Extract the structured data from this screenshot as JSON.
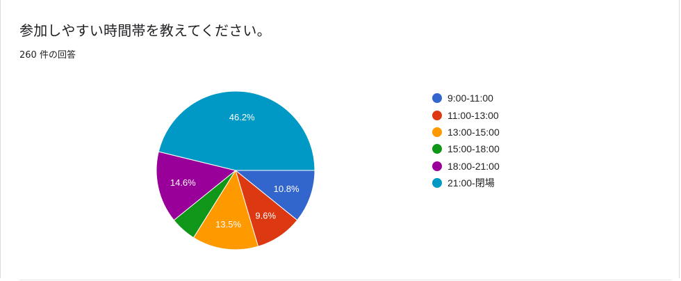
{
  "header": {
    "title": "参加しやすい時間帯を教えてください。",
    "response_count": "260 件の回答"
  },
  "chart_data": {
    "type": "pie",
    "categories": [
      "9:00-11:00",
      "11:00-13:00",
      "13:00-15:00",
      "15:00-18:00",
      "18:00-21:00",
      "21:00-閉場"
    ],
    "values": [
      10.8,
      9.6,
      13.5,
      5.3,
      14.6,
      46.2
    ],
    "labels": [
      "10.8%",
      "9.6%",
      "13.5%",
      "",
      "14.6%",
      "46.2%"
    ],
    "colors": [
      "#3366cc",
      "#dc3912",
      "#ff9900",
      "#109618",
      "#990099",
      "#0099c6"
    ],
    "legend_position": "right",
    "start": "3 o'clock, clockwise"
  }
}
